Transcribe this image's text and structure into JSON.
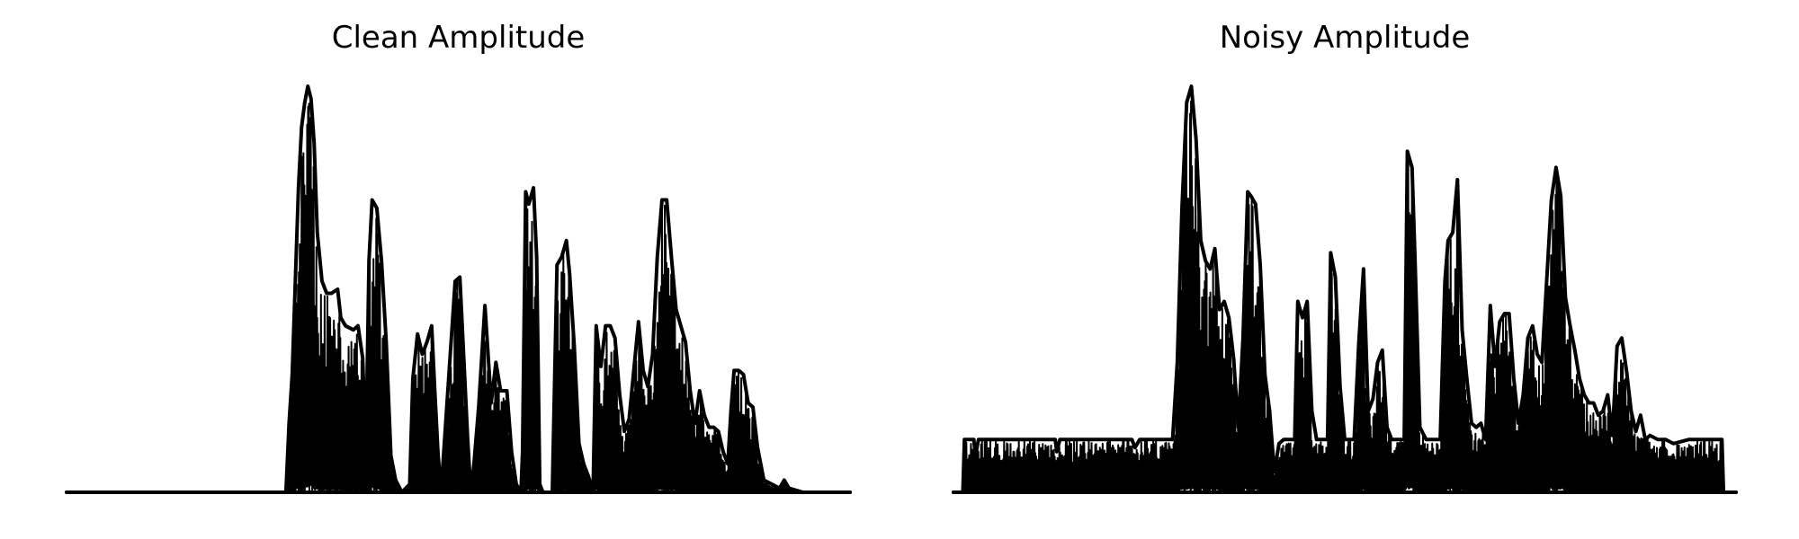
{
  "chart_data": [
    {
      "type": "area",
      "title": "Clean Amplitude",
      "axes_visible": false,
      "grid": false,
      "x_range": [
        0,
        1
      ],
      "ylim": [
        0,
        1
      ],
      "color": "#000000",
      "envelope": [
        [
          0.0,
          0.0
        ],
        [
          0.28,
          0.0
        ],
        [
          0.284,
          0.17
        ],
        [
          0.288,
          0.29
        ],
        [
          0.292,
          0.52
        ],
        [
          0.296,
          0.75
        ],
        [
          0.3,
          0.9
        ],
        [
          0.304,
          0.96
        ],
        [
          0.308,
          1.0
        ],
        [
          0.312,
          0.97
        ],
        [
          0.316,
          0.86
        ],
        [
          0.32,
          0.64
        ],
        [
          0.326,
          0.52
        ],
        [
          0.332,
          0.49
        ],
        [
          0.338,
          0.49
        ],
        [
          0.346,
          0.5
        ],
        [
          0.35,
          0.43
        ],
        [
          0.356,
          0.41
        ],
        [
          0.366,
          0.4
        ],
        [
          0.372,
          0.41
        ],
        [
          0.378,
          0.33
        ],
        [
          0.382,
          0.09
        ],
        [
          0.386,
          0.57
        ],
        [
          0.39,
          0.72
        ],
        [
          0.396,
          0.7
        ],
        [
          0.402,
          0.57
        ],
        [
          0.408,
          0.37
        ],
        [
          0.414,
          0.09
        ],
        [
          0.42,
          0.03
        ],
        [
          0.428,
          0.0
        ],
        [
          0.438,
          0.02
        ],
        [
          0.442,
          0.28
        ],
        [
          0.448,
          0.39
        ],
        [
          0.454,
          0.34
        ],
        [
          0.46,
          0.37
        ],
        [
          0.466,
          0.41
        ],
        [
          0.47,
          0.25
        ],
        [
          0.474,
          0.1
        ],
        [
          0.478,
          0.0
        ],
        [
          0.496,
          0.52
        ],
        [
          0.502,
          0.53
        ],
        [
          0.506,
          0.37
        ],
        [
          0.512,
          0.13
        ],
        [
          0.516,
          0.0
        ],
        [
          0.52,
          0.07
        ],
        [
          0.526,
          0.21
        ],
        [
          0.534,
          0.46
        ],
        [
          0.542,
          0.22
        ],
        [
          0.548,
          0.32
        ],
        [
          0.554,
          0.25
        ],
        [
          0.562,
          0.25
        ],
        [
          0.568,
          0.1
        ],
        [
          0.574,
          0.02
        ],
        [
          0.58,
          0.0
        ],
        [
          0.582,
          0.1
        ],
        [
          0.586,
          0.74
        ],
        [
          0.59,
          0.71
        ],
        [
          0.596,
          0.75
        ],
        [
          0.6,
          0.58
        ],
        [
          0.604,
          0.02
        ],
        [
          0.608,
          0.0
        ],
        [
          0.62,
          0.0
        ],
        [
          0.626,
          0.56
        ],
        [
          0.632,
          0.58
        ],
        [
          0.638,
          0.62
        ],
        [
          0.642,
          0.54
        ],
        [
          0.648,
          0.36
        ],
        [
          0.654,
          0.12
        ],
        [
          0.66,
          0.07
        ],
        [
          0.666,
          0.04
        ],
        [
          0.672,
          0.0
        ],
        [
          0.676,
          0.41
        ],
        [
          0.682,
          0.31
        ],
        [
          0.688,
          0.41
        ],
        [
          0.694,
          0.41
        ],
        [
          0.7,
          0.38
        ],
        [
          0.706,
          0.24
        ],
        [
          0.712,
          0.15
        ],
        [
          0.718,
          0.18
        ],
        [
          0.724,
          0.3
        ],
        [
          0.73,
          0.42
        ],
        [
          0.736,
          0.3
        ],
        [
          0.742,
          0.26
        ],
        [
          0.748,
          0.34
        ],
        [
          0.754,
          0.58
        ],
        [
          0.76,
          0.72
        ],
        [
          0.766,
          0.72
        ],
        [
          0.772,
          0.58
        ],
        [
          0.778,
          0.45
        ],
        [
          0.784,
          0.41
        ],
        [
          0.79,
          0.37
        ],
        [
          0.796,
          0.25
        ],
        [
          0.802,
          0.17
        ],
        [
          0.808,
          0.25
        ],
        [
          0.814,
          0.19
        ],
        [
          0.82,
          0.16
        ],
        [
          0.826,
          0.16
        ],
        [
          0.832,
          0.15
        ],
        [
          0.838,
          0.1
        ],
        [
          0.844,
          0.07
        ],
        [
          0.848,
          0.2
        ],
        [
          0.852,
          0.3
        ],
        [
          0.858,
          0.3
        ],
        [
          0.864,
          0.29
        ],
        [
          0.87,
          0.22
        ],
        [
          0.876,
          0.21
        ],
        [
          0.882,
          0.11
        ],
        [
          0.89,
          0.03
        ],
        [
          0.9,
          0.02
        ],
        [
          0.91,
          0.01
        ],
        [
          0.916,
          0.03
        ],
        [
          0.922,
          0.01
        ],
        [
          0.94,
          0.0
        ],
        [
          1.0,
          0.0
        ]
      ]
    },
    {
      "type": "area",
      "title": "Noisy Amplitude",
      "axes_visible": false,
      "grid": false,
      "x_range": [
        0,
        1
      ],
      "ylim": [
        0,
        1
      ],
      "color": "#000000",
      "envelope": [
        [
          0.0,
          0.0
        ],
        [
          0.012,
          0.0
        ],
        [
          0.014,
          0.13
        ],
        [
          0.026,
          0.13
        ],
        [
          0.028,
          0.09
        ],
        [
          0.032,
          0.13
        ],
        [
          0.13,
          0.13
        ],
        [
          0.132,
          0.1
        ],
        [
          0.136,
          0.13
        ],
        [
          0.228,
          0.13
        ],
        [
          0.232,
          0.11
        ],
        [
          0.238,
          0.13
        ],
        [
          0.28,
          0.13
        ],
        [
          0.286,
          0.32
        ],
        [
          0.292,
          0.7
        ],
        [
          0.298,
          0.96
        ],
        [
          0.304,
          1.0
        ],
        [
          0.31,
          0.87
        ],
        [
          0.316,
          0.62
        ],
        [
          0.322,
          0.57
        ],
        [
          0.328,
          0.55
        ],
        [
          0.334,
          0.6
        ],
        [
          0.34,
          0.45
        ],
        [
          0.346,
          0.47
        ],
        [
          0.352,
          0.43
        ],
        [
          0.358,
          0.33
        ],
        [
          0.364,
          0.16
        ],
        [
          0.37,
          0.38
        ],
        [
          0.376,
          0.74
        ],
        [
          0.38,
          0.73
        ],
        [
          0.386,
          0.71
        ],
        [
          0.392,
          0.56
        ],
        [
          0.398,
          0.29
        ],
        [
          0.404,
          0.2
        ],
        [
          0.41,
          0.05
        ],
        [
          0.416,
          0.12
        ],
        [
          0.422,
          0.13
        ],
        [
          0.436,
          0.13
        ],
        [
          0.44,
          0.47
        ],
        [
          0.446,
          0.43
        ],
        [
          0.452,
          0.47
        ],
        [
          0.458,
          0.2
        ],
        [
          0.464,
          0.13
        ],
        [
          0.478,
          0.13
        ],
        [
          0.482,
          0.59
        ],
        [
          0.488,
          0.53
        ],
        [
          0.494,
          0.26
        ],
        [
          0.5,
          0.13
        ],
        [
          0.512,
          0.13
        ],
        [
          0.518,
          0.37
        ],
        [
          0.524,
          0.55
        ],
        [
          0.53,
          0.2
        ],
        [
          0.536,
          0.23
        ],
        [
          0.542,
          0.32
        ],
        [
          0.548,
          0.35
        ],
        [
          0.554,
          0.16
        ],
        [
          0.56,
          0.13
        ],
        [
          0.576,
          0.13
        ],
        [
          0.58,
          0.84
        ],
        [
          0.586,
          0.8
        ],
        [
          0.59,
          0.56
        ],
        [
          0.596,
          0.16
        ],
        [
          0.604,
          0.13
        ],
        [
          0.622,
          0.13
        ],
        [
          0.628,
          0.52
        ],
        [
          0.632,
          0.62
        ],
        [
          0.638,
          0.64
        ],
        [
          0.644,
          0.77
        ],
        [
          0.65,
          0.4
        ],
        [
          0.656,
          0.28
        ],
        [
          0.662,
          0.17
        ],
        [
          0.668,
          0.16
        ],
        [
          0.674,
          0.17
        ],
        [
          0.68,
          0.13
        ],
        [
          0.686,
          0.46
        ],
        [
          0.692,
          0.31
        ],
        [
          0.698,
          0.42
        ],
        [
          0.704,
          0.44
        ],
        [
          0.71,
          0.44
        ],
        [
          0.716,
          0.28
        ],
        [
          0.722,
          0.17
        ],
        [
          0.728,
          0.24
        ],
        [
          0.734,
          0.38
        ],
        [
          0.74,
          0.41
        ],
        [
          0.746,
          0.34
        ],
        [
          0.752,
          0.32
        ],
        [
          0.758,
          0.52
        ],
        [
          0.764,
          0.72
        ],
        [
          0.77,
          0.8
        ],
        [
          0.776,
          0.73
        ],
        [
          0.782,
          0.48
        ],
        [
          0.788,
          0.41
        ],
        [
          0.794,
          0.35
        ],
        [
          0.8,
          0.28
        ],
        [
          0.806,
          0.24
        ],
        [
          0.812,
          0.22
        ],
        [
          0.818,
          0.22
        ],
        [
          0.824,
          0.19
        ],
        [
          0.83,
          0.2
        ],
        [
          0.836,
          0.24
        ],
        [
          0.842,
          0.14
        ],
        [
          0.848,
          0.36
        ],
        [
          0.854,
          0.38
        ],
        [
          0.86,
          0.3
        ],
        [
          0.866,
          0.2
        ],
        [
          0.872,
          0.15
        ],
        [
          0.878,
          0.19
        ],
        [
          0.884,
          0.13
        ],
        [
          0.89,
          0.14
        ],
        [
          0.9,
          0.13
        ],
        [
          0.91,
          0.13
        ],
        [
          0.92,
          0.12
        ],
        [
          0.94,
          0.13
        ],
        [
          0.97,
          0.13
        ],
        [
          0.982,
          0.13
        ],
        [
          0.984,
          0.0
        ],
        [
          1.0,
          0.0
        ]
      ]
    }
  ]
}
